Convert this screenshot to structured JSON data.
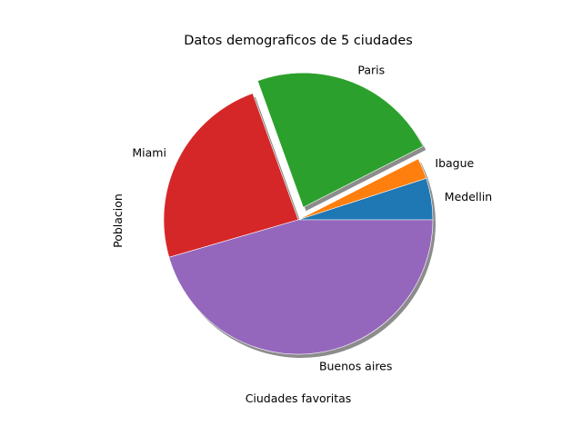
{
  "chart_data": {
    "type": "pie",
    "title": "Datos demograficos de 5 ciudades",
    "xlabel": "Ciudades favoritas",
    "ylabel": "Poblacion",
    "categories": [
      "Medellin",
      "Ibague",
      "Paris",
      "Miami",
      "Buenos aires"
    ],
    "values": [
      5,
      2.5,
      23,
      24,
      45.5
    ],
    "colors": [
      "#1f77b4",
      "#ff7f0e",
      "#2ca02c",
      "#d62728",
      "#9467bd"
    ],
    "explode": [
      0,
      0,
      0.1,
      0,
      0
    ],
    "shadow": true,
    "start_angle": 0,
    "direction": "counterclockwise"
  }
}
